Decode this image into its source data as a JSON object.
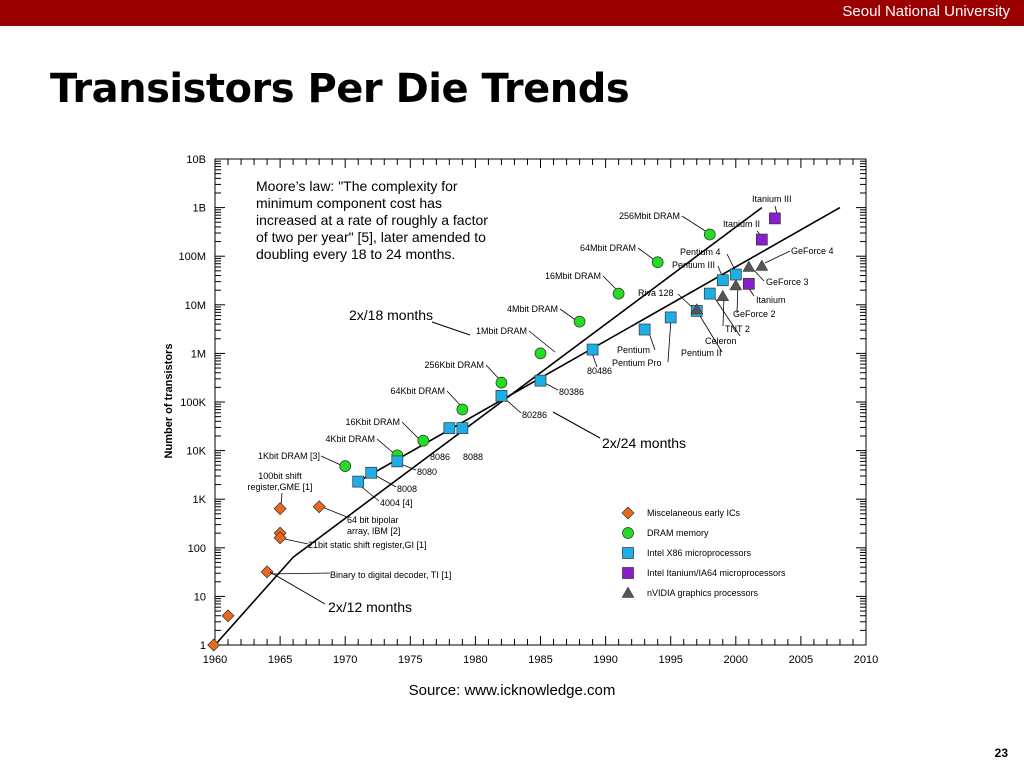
{
  "header": {
    "institution": "Seoul National University"
  },
  "slide": {
    "title": "Transistors Per Die Trends",
    "source": "Source: www.icknowledge.com",
    "page_number": "23"
  },
  "colors": {
    "header_bar": "#9a0000",
    "misc": "#e8691e",
    "dram": "#22dd22",
    "x86": "#1eaee6",
    "itanium": "#8a1ecc",
    "nvidia": "#555555"
  },
  "chart_data": {
    "type": "scatter",
    "title": "",
    "xlabel": "",
    "ylabel": "Number of transistors",
    "y_scale": "log",
    "xlim": [
      1960,
      2010
    ],
    "ylim": [
      1,
      10000000000
    ],
    "x_ticks": [
      "1960",
      "1965",
      "1970",
      "1975",
      "1980",
      "1985",
      "1990",
      "1995",
      "2000",
      "2005",
      "2010"
    ],
    "y_ticks": [
      {
        "value": 1,
        "label": "1"
      },
      {
        "value": 10,
        "label": "10"
      },
      {
        "value": 100,
        "label": "100"
      },
      {
        "value": 1000,
        "label": "1K"
      },
      {
        "value": 10000,
        "label": "10K"
      },
      {
        "value": 100000,
        "label": "100K"
      },
      {
        "value": 1000000,
        "label": "1M"
      },
      {
        "value": 10000000,
        "label": "10M"
      },
      {
        "value": 100000000,
        "label": "100M"
      },
      {
        "value": 1000000000,
        "label": "1B"
      },
      {
        "value": 10000000000,
        "label": "10B"
      }
    ],
    "moore_text": [
      "Moore’s law: \"The complexity for",
      "minimum component cost has",
      "increased at a rate of roughly a factor",
      "of two per year\" [5], later amended to",
      "doubling every 18 to 24 months."
    ],
    "trend_lines": [
      {
        "label": "2x/12 months",
        "points": [
          [
            1960,
            1
          ],
          [
            1966,
            64
          ]
        ]
      },
      {
        "label": "2x/18 months",
        "points": [
          [
            1966,
            64
          ],
          [
            2002,
            1000000000
          ]
        ]
      },
      {
        "label": "2x/24 months",
        "points": [
          [
            1971,
            2300
          ],
          [
            2008,
            1000000000
          ]
        ]
      }
    ],
    "series": [
      {
        "name": "Miscelaneous early ICs",
        "marker": "diamond",
        "color": "#e8691e",
        "points": [
          {
            "x": 1959.9,
            "y": 1,
            "label": ""
          },
          {
            "x": 1961,
            "y": 4,
            "label": ""
          },
          {
            "x": 1964,
            "y": 32,
            "label": "Binary to digital decoder, TI [1]"
          },
          {
            "x": 1965,
            "y": 200,
            "label": "21bit static shift register,GI [1]"
          },
          {
            "x": 1965,
            "y": 160,
            "label": ""
          },
          {
            "x": 1965,
            "y": 640,
            "label": "100bit shift register,GME [1]"
          },
          {
            "x": 1968,
            "y": 700,
            "label": "64 bit bipolar array, IBM [2]"
          }
        ]
      },
      {
        "name": "DRAM memory",
        "marker": "circle",
        "color": "#22dd22",
        "points": [
          {
            "x": 1970,
            "y": 4800,
            "label": "1Kbit DRAM [3]"
          },
          {
            "x": 1974,
            "y": 8000,
            "label": "4Kbit DRAM"
          },
          {
            "x": 1976,
            "y": 16000,
            "label": "16Kbit DRAM"
          },
          {
            "x": 1979,
            "y": 70000,
            "label": "64Kbit DRAM"
          },
          {
            "x": 1982,
            "y": 250000,
            "label": "256Kbit DRAM"
          },
          {
            "x": 1985,
            "y": 1000000,
            "label": "1Mbit DRAM"
          },
          {
            "x": 1988,
            "y": 4500000,
            "label": "4Mbit DRAM"
          },
          {
            "x": 1991,
            "y": 17000000,
            "label": "16Mbit DRAM"
          },
          {
            "x": 1994,
            "y": 75000000,
            "label": "64Mbit DRAM"
          },
          {
            "x": 1998,
            "y": 280000000,
            "label": "256Mbit DRAM"
          }
        ]
      },
      {
        "name": "Intel X86 microprocessors",
        "marker": "square",
        "color": "#1eaee6",
        "points": [
          {
            "x": 1971,
            "y": 2300,
            "label": "4004 [4]"
          },
          {
            "x": 1972,
            "y": 3500,
            "label": "8008"
          },
          {
            "x": 1974,
            "y": 6000,
            "label": "8080"
          },
          {
            "x": 1978,
            "y": 29000,
            "label": "8086"
          },
          {
            "x": 1979,
            "y": 29000,
            "label": "8088"
          },
          {
            "x": 1982,
            "y": 134000,
            "label": "80286"
          },
          {
            "x": 1985,
            "y": 275000,
            "label": "80386"
          },
          {
            "x": 1989,
            "y": 1200000,
            "label": "80486"
          },
          {
            "x": 1993,
            "y": 3100000,
            "label": "Pentium"
          },
          {
            "x": 1995,
            "y": 5500000,
            "label": "Pentium Pro"
          },
          {
            "x": 1997,
            "y": 7500000,
            "label": "Pentium II"
          },
          {
            "x": 1998,
            "y": 17000000,
            "label": "Celeron"
          },
          {
            "x": 1999,
            "y": 32000000,
            "label": "Pentium III"
          },
          {
            "x": 2000,
            "y": 42000000,
            "label": "Pentium 4"
          }
        ]
      },
      {
        "name": "Intel Itanium/IA64 microprocessors",
        "marker": "square",
        "color": "#8a1ecc",
        "points": [
          {
            "x": 2001,
            "y": 27000000,
            "label": "Itanium"
          },
          {
            "x": 2002,
            "y": 220000000,
            "label": "Itanium II"
          },
          {
            "x": 2003,
            "y": 600000000,
            "label": "Itanium III"
          }
        ]
      },
      {
        "name": "nVIDIA graphics processors",
        "marker": "triangle",
        "color": "#555555",
        "points": [
          {
            "x": 1997,
            "y": 8000000,
            "label": "Riva 128"
          },
          {
            "x": 1999,
            "y": 15000000,
            "label": "TNT 2"
          },
          {
            "x": 2000,
            "y": 25000000,
            "label": "GeForce 2"
          },
          {
            "x": 2001,
            "y": 60000000,
            "label": "GeForce 3"
          },
          {
            "x": 2002,
            "y": 63000000,
            "label": "GeForce 4"
          }
        ]
      }
    ],
    "legend": {
      "position": "bottom-right"
    }
  }
}
